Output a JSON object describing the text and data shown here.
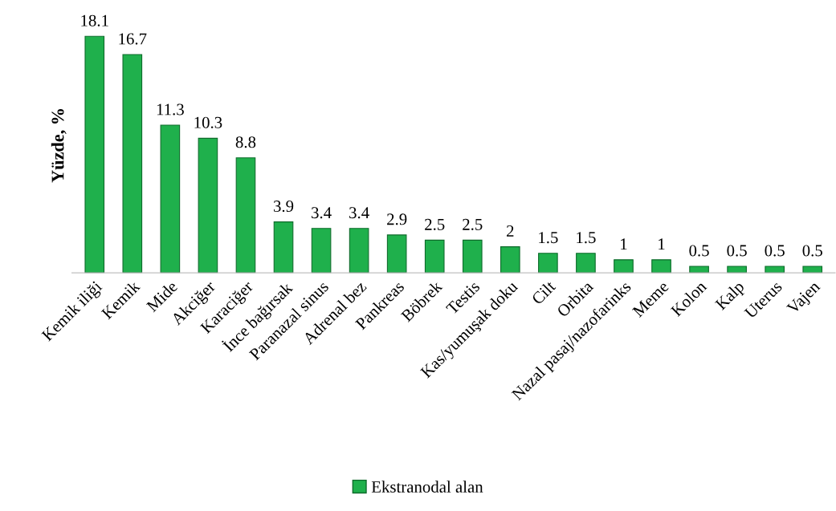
{
  "chart_data": {
    "type": "bar",
    "ylabel": "Yüzde, %",
    "categories": [
      "Kemik iliği",
      "Kemik",
      "Mide",
      "Akciğer",
      "Karaciğer",
      "İnce bağırsak",
      "Paranazal sinus",
      "Adrenal bez",
      "Pankreas",
      "Böbrek",
      "Testis",
      "Kas/yumuşak doku",
      "Cilt",
      "Orbita",
      "Nazal pasaj/nazofarinks",
      "Meme",
      "Kolon",
      "Kalp",
      "Uterus",
      "Vajen"
    ],
    "series": [
      {
        "name": "Ekstranodal alan",
        "color": "#1fb04c",
        "values": [
          18.1,
          16.7,
          11.3,
          10.3,
          8.8,
          3.9,
          3.4,
          3.4,
          2.9,
          2.5,
          2.5,
          2,
          1.5,
          1.5,
          1,
          1,
          0.5,
          0.5,
          0.5,
          0.5
        ]
      }
    ],
    "data_labels": true,
    "legend": "bottom",
    "grid": false,
    "tick_labels": "x"
  }
}
